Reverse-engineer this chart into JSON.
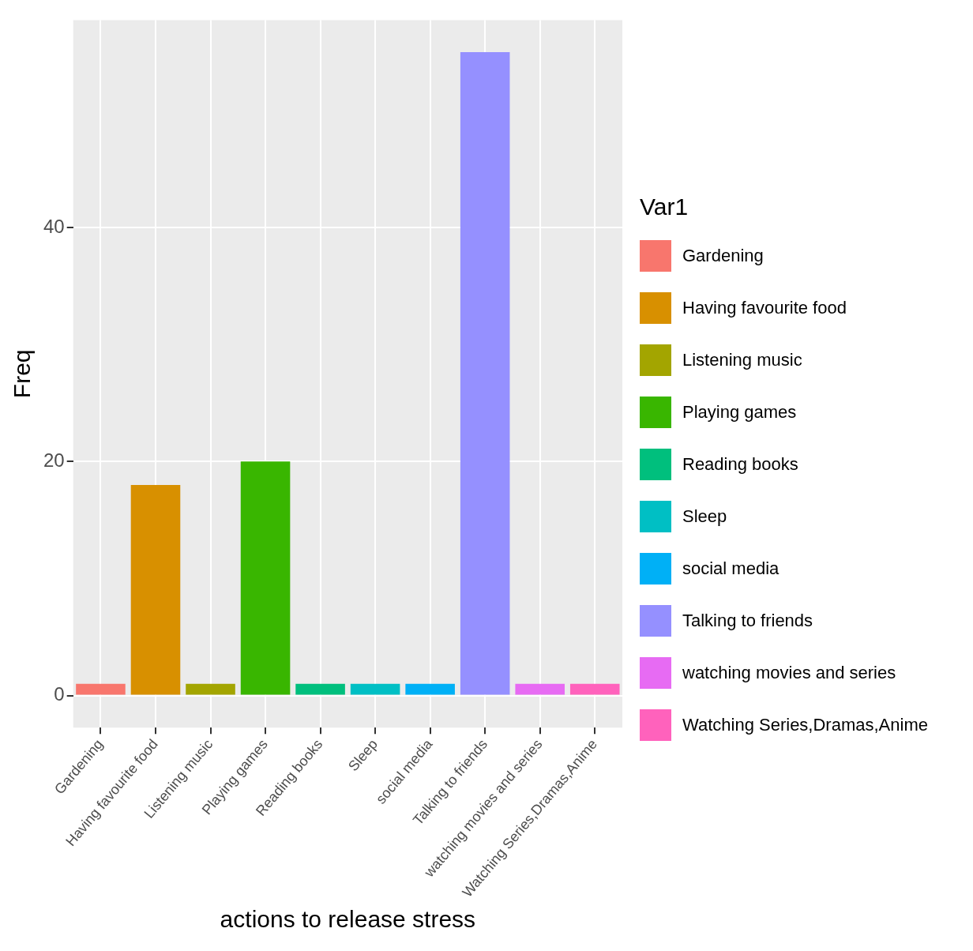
{
  "chart_data": {
    "type": "bar",
    "xlabel": "actions to release stress",
    "ylabel": "Freq",
    "legend_title": "Var1",
    "categories": [
      "Gardening",
      "Having favourite food",
      "Listening music",
      "Playing games",
      "Reading books",
      "Sleep",
      "social media",
      "Talking to friends",
      "watching movies and series",
      "Watching Series,Dramas,Anime"
    ],
    "series": [
      {
        "name": "Gardening",
        "color": "#f8766d",
        "values": [
          1,
          null,
          null,
          null,
          null,
          null,
          null,
          null,
          null,
          null
        ]
      },
      {
        "name": "Having favourite food",
        "color": "#d89000",
        "values": [
          null,
          18,
          null,
          null,
          null,
          null,
          null,
          null,
          null,
          null
        ]
      },
      {
        "name": "Listening music",
        "color": "#a3a500",
        "values": [
          null,
          null,
          1,
          null,
          null,
          null,
          null,
          null,
          null,
          null
        ]
      },
      {
        "name": "Playing games",
        "color": "#39b600",
        "values": [
          null,
          null,
          null,
          20,
          null,
          null,
          null,
          null,
          null,
          null
        ]
      },
      {
        "name": "Reading books",
        "color": "#00bf7d",
        "values": [
          null,
          null,
          null,
          null,
          1,
          null,
          null,
          null,
          null,
          null
        ]
      },
      {
        "name": "Sleep",
        "color": "#00bfc4",
        "values": [
          null,
          null,
          null,
          null,
          null,
          1,
          null,
          null,
          null,
          null
        ]
      },
      {
        "name": "social media",
        "color": "#00b0f6",
        "values": [
          null,
          null,
          null,
          null,
          null,
          null,
          1,
          null,
          null,
          null
        ]
      },
      {
        "name": "Talking to friends",
        "color": "#9590ff",
        "values": [
          null,
          null,
          null,
          null,
          null,
          null,
          null,
          55,
          null,
          null
        ]
      },
      {
        "name": "watching movies and series",
        "color": "#e76bf3",
        "values": [
          null,
          null,
          null,
          null,
          null,
          null,
          null,
          null,
          1,
          null
        ]
      },
      {
        "name": "Watching Series,Dramas,Anime",
        "color": "#ff62bc",
        "values": [
          null,
          null,
          null,
          null,
          null,
          null,
          null,
          null,
          null,
          1
        ]
      }
    ],
    "ylim": [
      -2.75,
      57.75
    ],
    "yticks": [
      0,
      20,
      40
    ],
    "grid": true,
    "legend": "right"
  }
}
